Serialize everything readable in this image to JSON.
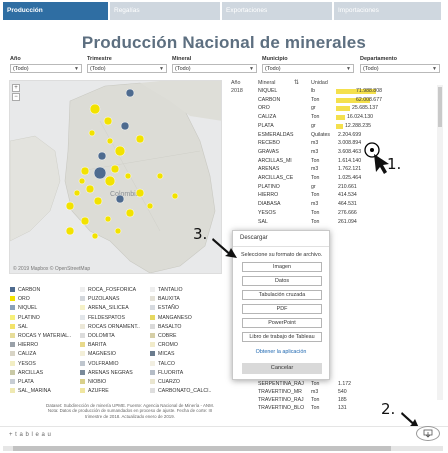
{
  "tabs": [
    {
      "label": "Producción",
      "active": true
    },
    {
      "label": "Regalías",
      "active": false
    },
    {
      "label": "Exportaciones",
      "active": false
    },
    {
      "label": "Importaciones",
      "active": false
    }
  ],
  "title": "Producción Nacional de minerales",
  "filters": [
    {
      "label": "Año",
      "value": "(Todo)"
    },
    {
      "label": "Trimestre",
      "value": "(Todo)"
    },
    {
      "label": "Mineral",
      "value": "(Todo)"
    },
    {
      "label": "Municipio",
      "value": "(Todo)"
    },
    {
      "label": "Departamento",
      "value": "(Todo)"
    }
  ],
  "map": {
    "label": "Colombia",
    "attribution": "© 2019 Mapbox © OpenStreetMap",
    "zoom_in": "+",
    "zoom_out": "−"
  },
  "table": {
    "year_header": "Año",
    "year_value": "2018",
    "mineral_header": "Mineral",
    "unit_header": "Unidad",
    "rows": [
      {
        "mineral": "NIQUEL",
        "unit": "lb",
        "value": "71.988.808",
        "bar": 0.72
      },
      {
        "mineral": "CARBON",
        "unit": "Ton",
        "value": "62.008.677",
        "bar": 0.62
      },
      {
        "mineral": "ORO",
        "unit": "gr",
        "value": "25.685.137",
        "bar": 0.26
      },
      {
        "mineral": "CALIZA",
        "unit": "Ton",
        "value": "16.024.130",
        "bar": 0.16
      },
      {
        "mineral": "PLATA",
        "unit": "gr",
        "value": "12.288.235",
        "bar": 0.12
      },
      {
        "mineral": "ESMERALDAS",
        "unit": "Quilates",
        "value": "2.204.699",
        "bar": 0
      },
      {
        "mineral": "RECEBO",
        "unit": "m3",
        "value": "3.008.894",
        "bar": 0
      },
      {
        "mineral": "GRAVAS",
        "unit": "m3",
        "value": "3.608.463",
        "bar": 0
      },
      {
        "mineral": "ARCILLAS_MI",
        "unit": "Ton",
        "value": "1.614.140",
        "bar": 0
      },
      {
        "mineral": "ARENAS",
        "unit": "m3",
        "value": "1.762.121",
        "bar": 0
      },
      {
        "mineral": "ARCILLAS_CE",
        "unit": "Ton",
        "value": "1.025.464",
        "bar": 0
      },
      {
        "mineral": "PLATINO",
        "unit": "gr",
        "value": "210.661",
        "bar": 0
      },
      {
        "mineral": "HIERRO",
        "unit": "Ton",
        "value": "414.534",
        "bar": 0
      },
      {
        "mineral": "DIABASA",
        "unit": "m3",
        "value": "464.531",
        "bar": 0
      },
      {
        "mineral": "YESOS",
        "unit": "Ton",
        "value": "276.666",
        "bar": 0
      },
      {
        "mineral": "SAL",
        "unit": "Ton",
        "value": "261.094",
        "bar": 0
      },
      {
        "mineral": "SERPENTINA_RAJ",
        "unit": "Ton",
        "value": "1.172",
        "bar": 0
      },
      {
        "mineral": "TRAVERTINO_MR",
        "unit": "m3",
        "value": "540",
        "bar": 0
      },
      {
        "mineral": "TRAVERTINO_RAJ",
        "unit": "Ton",
        "value": "185",
        "bar": 0
      },
      {
        "mineral": "TRAVERTINO_BLO",
        "unit": "Ton",
        "value": "131",
        "bar": 0
      }
    ]
  },
  "legend": [
    {
      "label": "CARBON",
      "color": "#4e6b8f"
    },
    {
      "label": "ORO",
      "color": "#f2e200"
    },
    {
      "label": "NIQUEL",
      "color": "#8aa1ba"
    },
    {
      "label": "PLATINO",
      "color": "#f7f07a"
    },
    {
      "label": "SAL",
      "color": "#f3e36a"
    },
    {
      "label": "ROCAS Y MATERIAL..",
      "color": "#e7dd9a"
    },
    {
      "label": "HIERRO",
      "color": "#9aa1a9"
    },
    {
      "label": "CALIZA",
      "color": "#d8d4c6"
    },
    {
      "label": "YESOS",
      "color": "#f2eec4"
    },
    {
      "label": "ARCILLAS",
      "color": "#c9c9a6"
    },
    {
      "label": "PLATA",
      "color": "#c7cdd4"
    },
    {
      "label": "SAL_MARINA",
      "color": "#efe9b2"
    },
    {
      "label": "ROCA_FOSFORICA",
      "color": "#eeeeee"
    },
    {
      "label": "PUZOLANAS",
      "color": "#d3d7dc"
    },
    {
      "label": "ARENA_SILICEA",
      "color": "#f5f1c7"
    },
    {
      "label": "FELDESPATOS",
      "color": "#e2e6ea"
    },
    {
      "label": "ROCAS ORNAMENT..",
      "color": "#ece8d8"
    },
    {
      "label": "DOLOMITA",
      "color": "#dcdcdc"
    },
    {
      "label": "BARITA",
      "color": "#e8d98a"
    },
    {
      "label": "MAGNESIO",
      "color": "#f3efd9"
    },
    {
      "label": "VOLFRAMIO",
      "color": "#bfc6ce"
    },
    {
      "label": "ARENAS NEGRAS",
      "color": "#7a8a9a"
    },
    {
      "label": "NIOBIO",
      "color": "#d9d08a"
    },
    {
      "label": "AZUFRE",
      "color": "#f0e6a0"
    },
    {
      "label": "TANTALIO",
      "color": "#eeeeee"
    },
    {
      "label": "BAUXITA",
      "color": "#e4e1d6"
    },
    {
      "label": "ESTAÑO",
      "color": "#d6dadf"
    },
    {
      "label": "MANGANESO",
      "color": "#e6d860"
    },
    {
      "label": "BASALTO",
      "color": "#dadada"
    },
    {
      "label": "COBRE",
      "color": "#d6cfa7"
    },
    {
      "label": "CROMO",
      "color": "#f1ebca"
    },
    {
      "label": "MICAS",
      "color": "#6b7c8e"
    },
    {
      "label": "TALCO",
      "color": "#f2efe2"
    },
    {
      "label": "FLUORITA",
      "color": "#b5bdc7"
    },
    {
      "label": "CUARZO",
      "color": "#eae6d0"
    },
    {
      "label": "CARBONATO_CALCI..",
      "color": "#dedede"
    }
  ],
  "footnote": "Dataset: Subdirección de minería UPME. Fuente: Agencia Nacional de Minería - ANM. Nota: Datos de producción de sumandados en proceso de ajuste. Fecha de corte: III trimestre de 2018. Actualizado enero de 2019.",
  "dialog": {
    "title": "Descargar",
    "subtitle": "Seleccione su formato de archivo.",
    "options": [
      "Imagen",
      "Datos",
      "Tabulación cruzada",
      "PDF",
      "PowerPoint",
      "Libro de trabajo de Tableau"
    ],
    "link": "Obtener la aplicación",
    "cancel": "Cancelar"
  },
  "steps": [
    "1.",
    "2.",
    "3."
  ],
  "branding": "+ t a b l e a u"
}
